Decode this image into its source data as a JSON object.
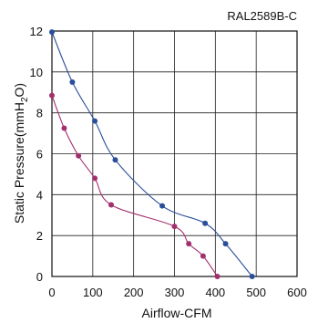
{
  "chart_data": {
    "type": "line",
    "title": "RAL2589B-C",
    "xlabel": "Airflow-CFM",
    "ylabel_main": "Static Pressure(mmH",
    "ylabel_sub": "2",
    "ylabel_end": "O)",
    "xlim": [
      0,
      600
    ],
    "ylim": [
      0,
      12
    ],
    "x_ticks": [
      0,
      100,
      200,
      300,
      400,
      500,
      600
    ],
    "x_tick_labels": [
      "0",
      "100",
      "200",
      "300",
      "400",
      "500",
      "600"
    ],
    "y_ticks": [
      0,
      2,
      4,
      6,
      8,
      10,
      12
    ],
    "y_tick_labels": [
      "0",
      "2",
      "4",
      "6",
      "8",
      "10",
      "12"
    ],
    "grid": true,
    "series": [
      {
        "color": "#2a4f9a",
        "points": [
          [
            0,
            11.95
          ],
          [
            50,
            9.5
          ],
          [
            105,
            7.6
          ],
          [
            155,
            5.7
          ],
          [
            270,
            3.45
          ],
          [
            375,
            2.6
          ],
          [
            425,
            1.6
          ],
          [
            490,
            0.0
          ]
        ]
      },
      {
        "color": "#a3306e",
        "points": [
          [
            0,
            8.85
          ],
          [
            30,
            7.25
          ],
          [
            65,
            5.9
          ],
          [
            105,
            4.8
          ],
          [
            145,
            3.5
          ],
          [
            300,
            2.45
          ],
          [
            335,
            1.6
          ],
          [
            370,
            1.0
          ],
          [
            405,
            0.0
          ]
        ]
      }
    ]
  }
}
